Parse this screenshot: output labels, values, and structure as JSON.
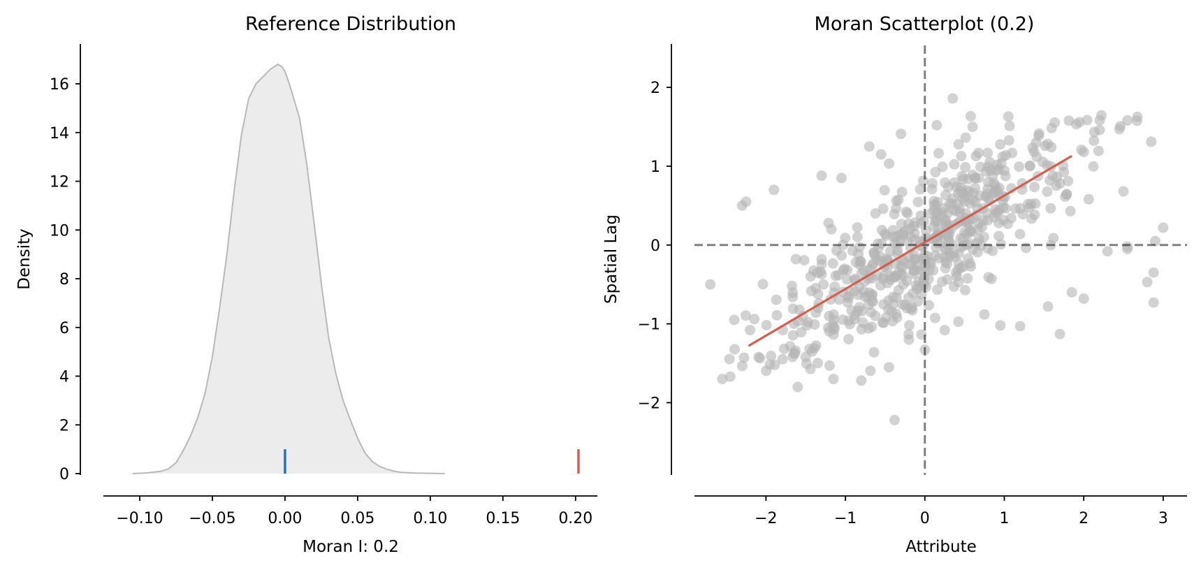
{
  "chart_data": [
    {
      "type": "area",
      "title": "Reference Distribution",
      "xlabel": "Moran I: 0.2",
      "ylabel": "Density",
      "xlim": [
        -0.125,
        0.215
      ],
      "ylim": [
        0,
        17.5
      ],
      "xticks": [
        -0.1,
        -0.05,
        0.0,
        0.05,
        0.1,
        0.15,
        0.2
      ],
      "xtick_labels": [
        "−0.10",
        "−0.05",
        "0.00",
        "0.05",
        "0.10",
        "0.15",
        "0.20"
      ],
      "yticks": [
        0,
        2,
        4,
        6,
        8,
        10,
        12,
        14,
        16
      ],
      "ytick_labels": [
        "0",
        "2",
        "4",
        "6",
        "8",
        "10",
        "12",
        "14",
        "16"
      ],
      "density": {
        "x": [
          -0.105,
          -0.095,
          -0.085,
          -0.08,
          -0.075,
          -0.07,
          -0.065,
          -0.06,
          -0.055,
          -0.05,
          -0.045,
          -0.04,
          -0.035,
          -0.03,
          -0.025,
          -0.02,
          -0.015,
          -0.01,
          -0.005,
          -0.002,
          0.0,
          0.003,
          0.006,
          0.01,
          0.015,
          0.02,
          0.025,
          0.03,
          0.035,
          0.04,
          0.045,
          0.05,
          0.055,
          0.06,
          0.065,
          0.07,
          0.075,
          0.08,
          0.09,
          0.1,
          0.11
        ],
        "y": [
          0.0,
          0.03,
          0.1,
          0.2,
          0.45,
          0.95,
          1.55,
          2.3,
          3.3,
          4.8,
          6.8,
          9.0,
          11.6,
          13.9,
          15.4,
          16.0,
          16.3,
          16.6,
          16.8,
          16.7,
          16.5,
          16.0,
          15.4,
          14.6,
          12.7,
          10.3,
          7.8,
          5.6,
          4.1,
          3.0,
          2.2,
          1.45,
          0.85,
          0.5,
          0.3,
          0.18,
          0.1,
          0.05,
          0.02,
          0.01,
          0.0
        ]
      },
      "markers": [
        {
          "name": "expected",
          "x": 0.0,
          "height": 1.0,
          "color": "#1f77b4"
        },
        {
          "name": "observed",
          "x": 0.202,
          "height": 1.0,
          "color": "#d1604f"
        }
      ],
      "fill_color": "#ececec",
      "line_color": "#b8b8b8"
    },
    {
      "type": "scatter",
      "title": "Moran Scatterplot (0.2)",
      "xlabel": "Attribute",
      "ylabel": "Spatial Lag",
      "xlim": [
        -2.9,
        3.3
      ],
      "ylim": [
        -2.9,
        2.55
      ],
      "xticks": [
        -2,
        -1,
        0,
        1,
        2,
        3
      ],
      "xtick_labels": [
        "−2",
        "−1",
        "0",
        "1",
        "2",
        "3"
      ],
      "yticks": [
        -2,
        -1,
        0,
        1,
        2
      ],
      "ytick_labels": [
        "−2",
        "−1",
        "0",
        "1",
        "2"
      ],
      "point_color": "#b4b4b4",
      "fit_color": "#d1604f",
      "fit_line": {
        "x": [
          -2.22,
          1.85
        ],
        "y": [
          -1.28,
          1.13
        ]
      },
      "highlight_points": [
        {
          "x": 0.35,
          "y": 1.86
        },
        {
          "x": 1.05,
          "y": 1.63
        },
        {
          "x": 2.45,
          "y": 1.47
        },
        {
          "x": 2.2,
          "y": 1.46
        },
        {
          "x": 2.85,
          "y": 1.31
        },
        {
          "x": 3.0,
          "y": 0.22
        },
        {
          "x": 2.9,
          "y": 0.05
        },
        {
          "x": 2.88,
          "y": -0.35
        },
        {
          "x": 2.88,
          "y": -0.73
        },
        {
          "x": 2.8,
          "y": -0.47
        },
        {
          "x": -2.7,
          "y": -0.5
        },
        {
          "x": -2.55,
          "y": -1.7
        },
        {
          "x": -2.45,
          "y": -1.67
        },
        {
          "x": -2.4,
          "y": -0.95
        },
        {
          "x": -2.2,
          "y": -1.08
        },
        {
          "x": -1.9,
          "y": 0.7
        },
        {
          "x": -2.3,
          "y": 0.5
        },
        {
          "x": -2.25,
          "y": 0.55
        },
        {
          "x": -0.38,
          "y": -2.22
        },
        {
          "x": 0.15,
          "y": 1.52
        },
        {
          "x": -0.3,
          "y": 1.41
        },
        {
          "x": 1.7,
          "y": -1.13
        },
        {
          "x": 1.2,
          "y": -1.03
        },
        {
          "x": 1.55,
          "y": -0.78
        },
        {
          "x": -1.6,
          "y": -1.8
        },
        {
          "x": -1.5,
          "y": -1.42
        },
        {
          "x": -1.2,
          "y": -1.53
        },
        {
          "x": -1.15,
          "y": -1.7
        },
        {
          "x": -0.8,
          "y": -1.72
        },
        {
          "x": 0.0,
          "y": -1.33
        },
        {
          "x": 2.0,
          "y": 1.18
        },
        {
          "x": 1.7,
          "y": 0.78
        },
        {
          "x": 2.5,
          "y": 0.68
        },
        {
          "x": 2.3,
          "y": -0.08
        },
        {
          "x": 2.55,
          "y": -0.02
        },
        {
          "x": 2.55,
          "y": -0.05
        },
        {
          "x": 2.0,
          "y": -0.68
        },
        {
          "x": 1.85,
          "y": -0.6
        },
        {
          "x": 1.4,
          "y": 1.3
        },
        {
          "x": 0.6,
          "y": 1.5
        },
        {
          "x": -1.3,
          "y": 0.88
        },
        {
          "x": -0.7,
          "y": 1.25
        },
        {
          "x": -0.55,
          "y": 1.15
        },
        {
          "x": -1.05,
          "y": 0.85
        },
        {
          "x": 0.9,
          "y": 0.95
        },
        {
          "x": 0.75,
          "y": -0.88
        },
        {
          "x": 0.95,
          "y": -1.02
        },
        {
          "x": 0.25,
          "y": -1.08
        },
        {
          "x": -0.2,
          "y": -1.2
        },
        {
          "x": -0.35,
          "y": -0.92
        }
      ],
      "cloud": {
        "n": 560,
        "seed": 7,
        "x_sd": 0.95,
        "slope": 0.59,
        "noise_sd": 0.42
      }
    }
  ]
}
